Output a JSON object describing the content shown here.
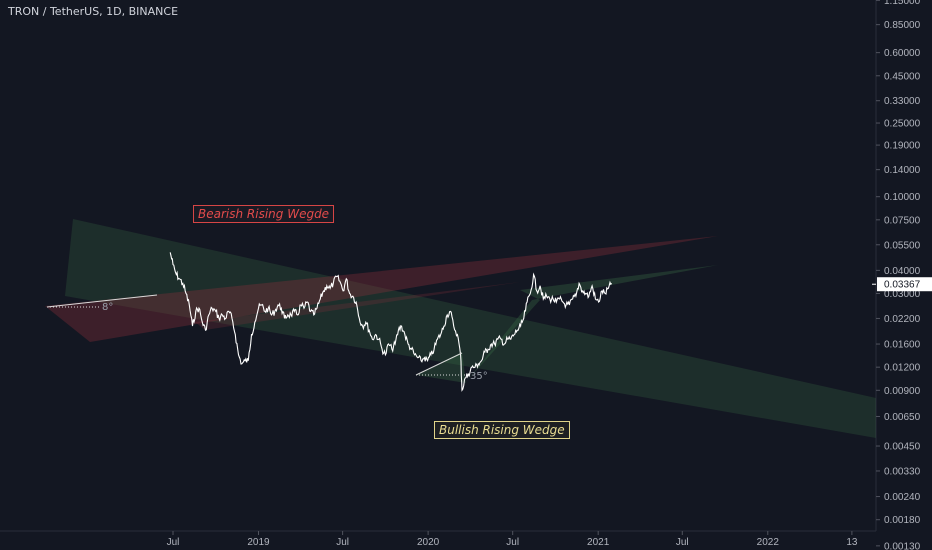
{
  "header": {
    "title": "TRON / TetherUS, 1D, BINANCE"
  },
  "annotations": {
    "bearish_label": "Bearish Rising Wegde",
    "bullish_label": "Bullish Rising Wedge",
    "angle_small": "8°",
    "angle_large": "35°"
  },
  "price_tag": "0.03367",
  "colors": {
    "background": "#131722",
    "price_line": "#ffffff",
    "green_zone": "#3a6b46",
    "red_zone": "#8b2f3a",
    "axis_text": "#b2b5be",
    "bear_label": "#e24b4b",
    "bull_label": "#e8dc92"
  },
  "chart_data": {
    "type": "line",
    "scale": "log",
    "title": "TRON / TetherUS, 1D, BINANCE",
    "y_ticks": [
      "1.15000",
      "0.85000",
      "0.60000",
      "0.45000",
      "0.33000",
      "0.25000",
      "0.19000",
      "0.14000",
      "0.10000",
      "0.07500",
      "0.05500",
      "0.04000",
      "0.03000",
      "0.02200",
      "0.01600",
      "0.01200",
      "0.00900",
      "0.00650",
      "0.00450",
      "0.00330",
      "0.00240",
      "0.00180",
      "0.00130"
    ],
    "x_ticks": [
      "Jul",
      "2019",
      "Jul",
      "2020",
      "Jul",
      "2021",
      "Jul",
      "2022",
      "13"
    ],
    "x_range": [
      "2018-01",
      "2022-12"
    ],
    "last_price": 0.03367,
    "series": [
      {
        "values": [
          [
            "2018-06-25",
            0.05
          ],
          [
            "2018-07-01",
            0.043
          ],
          [
            "2018-07-08",
            0.038
          ],
          [
            "2018-07-15",
            0.036
          ],
          [
            "2018-07-22",
            0.034
          ],
          [
            "2018-07-29",
            0.03
          ],
          [
            "2018-08-05",
            0.026
          ],
          [
            "2018-08-12",
            0.02
          ],
          [
            "2018-08-19",
            0.024
          ],
          [
            "2018-08-26",
            0.025
          ],
          [
            "2018-09-02",
            0.021
          ],
          [
            "2018-09-09",
            0.019
          ],
          [
            "2018-09-16",
            0.023
          ],
          [
            "2018-09-23",
            0.025
          ],
          [
            "2018-10-01",
            0.024
          ],
          [
            "2018-10-08",
            0.022
          ],
          [
            "2018-10-15",
            0.023
          ],
          [
            "2018-10-22",
            0.022
          ],
          [
            "2018-10-29",
            0.024
          ],
          [
            "2018-11-05",
            0.022
          ],
          [
            "2018-11-12",
            0.018
          ],
          [
            "2018-11-19",
            0.014
          ],
          [
            "2018-11-26",
            0.0125
          ],
          [
            "2018-12-03",
            0.013
          ],
          [
            "2018-12-10",
            0.013
          ],
          [
            "2018-12-17",
            0.018
          ],
          [
            "2018-12-24",
            0.021
          ],
          [
            "2019-01-01",
            0.025
          ],
          [
            "2019-01-08",
            0.026
          ],
          [
            "2019-01-15",
            0.024
          ],
          [
            "2019-01-22",
            0.025
          ],
          [
            "2019-01-29",
            0.023
          ],
          [
            "2019-02-05",
            0.024
          ],
          [
            "2019-02-12",
            0.026
          ],
          [
            "2019-02-19",
            0.025
          ],
          [
            "2019-02-26",
            0.022
          ],
          [
            "2019-03-05",
            0.023
          ],
          [
            "2019-03-12",
            0.023
          ],
          [
            "2019-03-19",
            0.024
          ],
          [
            "2019-03-26",
            0.023
          ],
          [
            "2019-04-02",
            0.026
          ],
          [
            "2019-04-09",
            0.025
          ],
          [
            "2019-04-16",
            0.027
          ],
          [
            "2019-04-23",
            0.024
          ],
          [
            "2019-04-30",
            0.023
          ],
          [
            "2019-05-07",
            0.025
          ],
          [
            "2019-05-14",
            0.028
          ],
          [
            "2019-05-21",
            0.031
          ],
          [
            "2019-05-28",
            0.033
          ],
          [
            "2019-06-04",
            0.032
          ],
          [
            "2019-06-11",
            0.034
          ],
          [
            "2019-06-18",
            0.037
          ],
          [
            "2019-06-25",
            0.035
          ],
          [
            "2019-07-02",
            0.031
          ],
          [
            "2019-07-09",
            0.036
          ],
          [
            "2019-07-16",
            0.03
          ],
          [
            "2019-07-23",
            0.029
          ],
          [
            "2019-07-30",
            0.027
          ],
          [
            "2019-08-06",
            0.022
          ],
          [
            "2019-08-13",
            0.02
          ],
          [
            "2019-08-20",
            0.021
          ],
          [
            "2019-08-27",
            0.019
          ],
          [
            "2019-09-03",
            0.017
          ],
          [
            "2019-09-10",
            0.018
          ],
          [
            "2019-09-17",
            0.017
          ],
          [
            "2019-09-24",
            0.015
          ],
          [
            "2019-10-01",
            0.014
          ],
          [
            "2019-10-08",
            0.016
          ],
          [
            "2019-10-15",
            0.015
          ],
          [
            "2019-10-22",
            0.016
          ],
          [
            "2019-10-29",
            0.019
          ],
          [
            "2019-11-05",
            0.02
          ],
          [
            "2019-11-12",
            0.018
          ],
          [
            "2019-11-19",
            0.016
          ],
          [
            "2019-11-26",
            0.015
          ],
          [
            "2019-12-03",
            0.014
          ],
          [
            "2019-12-10",
            0.0135
          ],
          [
            "2019-12-17",
            0.013
          ],
          [
            "2019-12-24",
            0.0135
          ],
          [
            "2019-12-31",
            0.013
          ],
          [
            "2020-01-07",
            0.014
          ],
          [
            "2020-01-14",
            0.015
          ],
          [
            "2020-01-21",
            0.017
          ],
          [
            "2020-01-28",
            0.018
          ],
          [
            "2020-02-04",
            0.02
          ],
          [
            "2020-02-11",
            0.023
          ],
          [
            "2020-02-18",
            0.024
          ],
          [
            "2020-02-25",
            0.02
          ],
          [
            "2020-03-04",
            0.018
          ],
          [
            "2020-03-11",
            0.014
          ],
          [
            "2020-03-14",
            0.009
          ],
          [
            "2020-03-21",
            0.0105
          ],
          [
            "2020-03-28",
            0.011
          ],
          [
            "2020-04-04",
            0.012
          ],
          [
            "2020-04-11",
            0.012
          ],
          [
            "2020-04-18",
            0.0125
          ],
          [
            "2020-04-25",
            0.013
          ],
          [
            "2020-05-02",
            0.0145
          ],
          [
            "2020-05-09",
            0.015
          ],
          [
            "2020-05-16",
            0.016
          ],
          [
            "2020-05-23",
            0.016
          ],
          [
            "2020-05-30",
            0.017
          ],
          [
            "2020-06-06",
            0.017
          ],
          [
            "2020-06-13",
            0.016
          ],
          [
            "2020-06-20",
            0.017
          ],
          [
            "2020-06-27",
            0.017
          ],
          [
            "2020-07-04",
            0.018
          ],
          [
            "2020-07-11",
            0.019
          ],
          [
            "2020-07-18",
            0.02
          ],
          [
            "2020-07-25",
            0.022
          ],
          [
            "2020-08-01",
            0.027
          ],
          [
            "2020-08-08",
            0.03
          ],
          [
            "2020-08-15",
            0.038
          ],
          [
            "2020-08-22",
            0.031
          ],
          [
            "2020-08-29",
            0.033
          ],
          [
            "2020-09-05",
            0.028
          ],
          [
            "2020-09-12",
            0.029
          ],
          [
            "2020-09-19",
            0.028
          ],
          [
            "2020-09-26",
            0.028
          ],
          [
            "2020-10-03",
            0.027
          ],
          [
            "2020-10-10",
            0.028
          ],
          [
            "2020-10-17",
            0.027
          ],
          [
            "2020-10-24",
            0.026
          ],
          [
            "2020-10-31",
            0.026
          ],
          [
            "2020-11-07",
            0.028
          ],
          [
            "2020-11-14",
            0.029
          ],
          [
            "2020-11-21",
            0.034
          ],
          [
            "2020-11-28",
            0.031
          ],
          [
            "2020-12-05",
            0.03
          ],
          [
            "2020-12-12",
            0.029
          ],
          [
            "2020-12-19",
            0.033
          ],
          [
            "2020-12-26",
            0.028
          ],
          [
            "2021-01-02",
            0.027
          ],
          [
            "2021-01-09",
            0.031
          ],
          [
            "2021-01-16",
            0.03
          ],
          [
            "2021-01-23",
            0.032
          ],
          [
            "2021-01-30",
            0.034
          ]
        ]
      }
    ]
  }
}
